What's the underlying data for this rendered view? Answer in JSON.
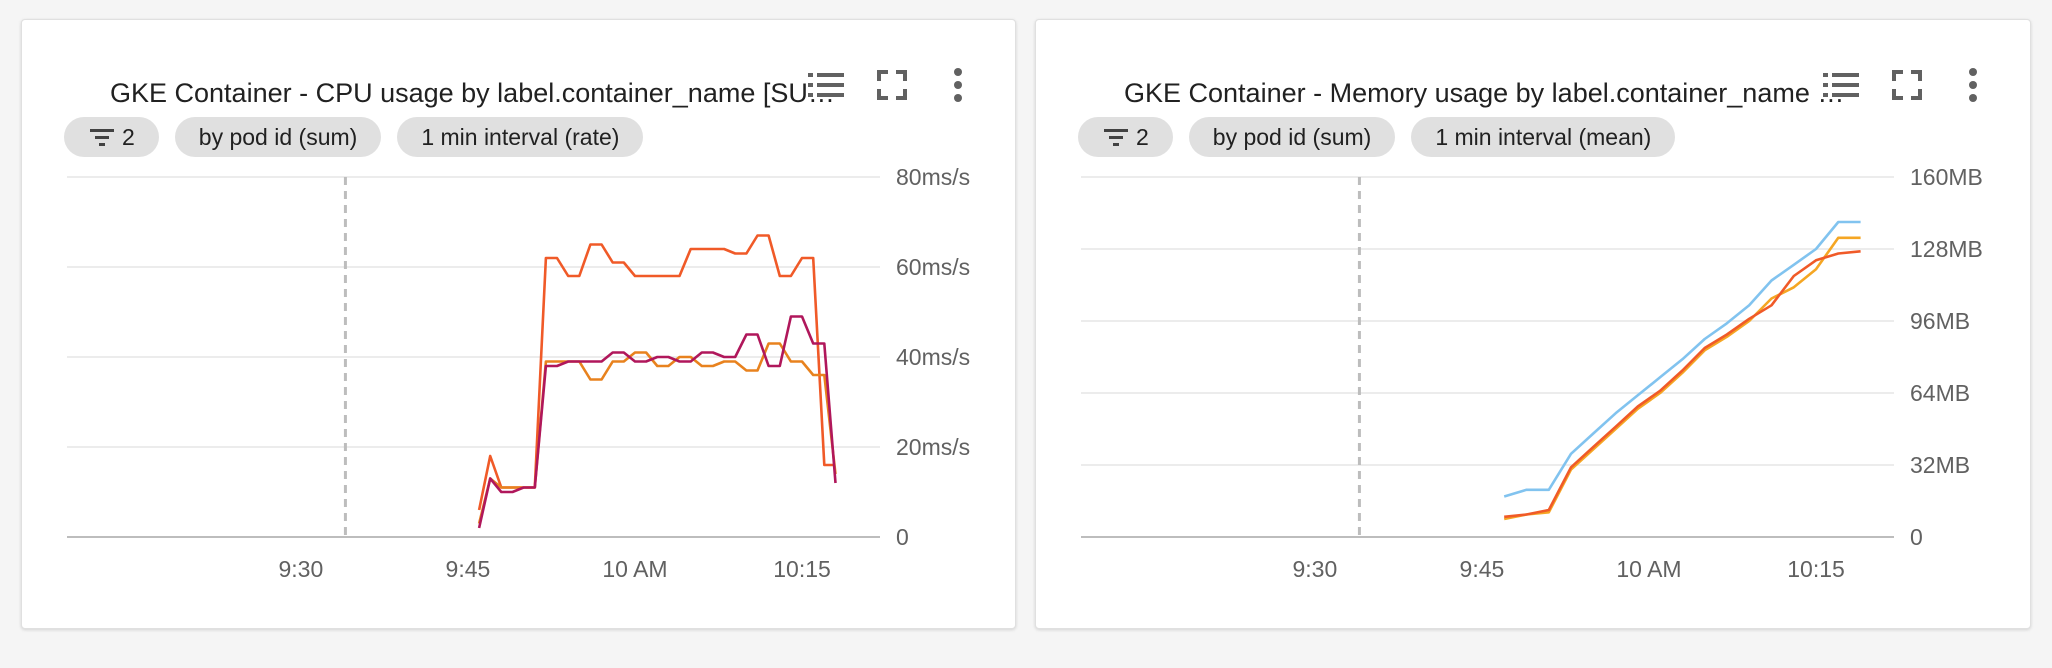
{
  "cards": [
    {
      "title": "GKE Container - CPU usage by label.container_name [SU…",
      "chips": {
        "filter_count": "2",
        "group_by": "by pod id (sum)",
        "interval": "1 min interval (rate)"
      },
      "icons": [
        "legend-list-icon",
        "fullscreen-icon",
        "more-vert-icon"
      ]
    },
    {
      "title": "GKE Container - Memory usage by label.container_name …",
      "chips": {
        "filter_count": "2",
        "group_by": "by pod id (sum)",
        "interval": "1 min interval (mean)"
      },
      "icons": [
        "legend-list-icon",
        "fullscreen-icon",
        "more-vert-icon"
      ]
    }
  ],
  "chart_data": [
    {
      "type": "line",
      "x_unit": "minutes after 9:00",
      "xlim": [
        9,
        82
      ],
      "x_ticks": [
        {
          "value": 30,
          "label": "9:30"
        },
        {
          "value": 45,
          "label": "9:45"
        },
        {
          "value": 60,
          "label": "10 AM"
        },
        {
          "value": 75,
          "label": "10:15"
        }
      ],
      "marker_x": 34,
      "ylim": [
        0,
        80
      ],
      "y_ticks": [
        {
          "value": 0,
          "label": "0"
        },
        {
          "value": 20,
          "label": "20ms/s"
        },
        {
          "value": 40,
          "label": "40ms/s"
        },
        {
          "value": 60,
          "label": "60ms/s"
        },
        {
          "value": 80,
          "label": "80ms/s"
        }
      ],
      "grid": true,
      "series": [
        {
          "color": "#f05a28",
          "x": [
            46,
            47,
            48,
            49,
            50,
            51,
            52,
            53,
            54,
            55,
            56,
            57,
            58,
            59,
            60,
            61,
            62,
            63,
            64,
            65,
            66,
            67,
            68,
            69,
            70,
            71,
            72,
            73,
            74,
            75,
            76,
            77,
            78
          ],
          "y": [
            6,
            18,
            11,
            11,
            11,
            11,
            62,
            62,
            58,
            58,
            65,
            65,
            61,
            61,
            58,
            58,
            58,
            58,
            58,
            64,
            64,
            64,
            64,
            63,
            63,
            67,
            67,
            58,
            58,
            62,
            62,
            16,
            16
          ]
        },
        {
          "color": "#e8821e",
          "x": [
            46,
            47,
            48,
            49,
            50,
            51,
            52,
            53,
            54,
            55,
            56,
            57,
            58,
            59,
            60,
            61,
            62,
            63,
            64,
            65,
            66,
            67,
            68,
            69,
            70,
            71,
            72,
            73,
            74,
            75,
            76,
            77,
            78
          ],
          "y": [
            3,
            13,
            11,
            11,
            11,
            11,
            39,
            39,
            39,
            39,
            35,
            35,
            39,
            39,
            41,
            41,
            38,
            38,
            40,
            40,
            38,
            38,
            39,
            39,
            37,
            37,
            43,
            43,
            39,
            39,
            36,
            36,
            14
          ]
        },
        {
          "color": "#b0175b",
          "x": [
            46,
            47,
            48,
            49,
            50,
            51,
            52,
            53,
            54,
            55,
            56,
            57,
            58,
            59,
            60,
            61,
            62,
            63,
            64,
            65,
            66,
            67,
            68,
            69,
            70,
            71,
            72,
            73,
            74,
            75,
            76,
            77,
            78
          ],
          "y": [
            2,
            13,
            10,
            10,
            11,
            11,
            38,
            38,
            39,
            39,
            39,
            39,
            41,
            41,
            39,
            39,
            40,
            40,
            39,
            39,
            41,
            41,
            40,
            40,
            45,
            45,
            38,
            38,
            49,
            49,
            43,
            43,
            12
          ]
        }
      ]
    },
    {
      "type": "line",
      "x_unit": "minutes after 9:00",
      "xlim": [
        9,
        82
      ],
      "x_ticks": [
        {
          "value": 30,
          "label": "9:30"
        },
        {
          "value": 45,
          "label": "9:45"
        },
        {
          "value": 60,
          "label": "10 AM"
        },
        {
          "value": 75,
          "label": "10:15"
        }
      ],
      "marker_x": 34,
      "ylim": [
        0,
        160
      ],
      "y_ticks": [
        {
          "value": 0,
          "label": "0"
        },
        {
          "value": 32,
          "label": "32MB"
        },
        {
          "value": 64,
          "label": "64MB"
        },
        {
          "value": 96,
          "label": "96MB"
        },
        {
          "value": 128,
          "label": "128MB"
        },
        {
          "value": 160,
          "label": "160MB"
        }
      ],
      "grid": true,
      "series": [
        {
          "color": "#81c3ef",
          "x": [
            47,
            49,
            51,
            53,
            55,
            57,
            59,
            61,
            63,
            65,
            67,
            69,
            71,
            73,
            75,
            77,
            79
          ],
          "y": [
            18,
            21,
            21,
            37,
            46,
            55,
            63,
            71,
            79,
            88,
            95,
            103,
            114,
            121,
            128,
            140,
            140
          ]
        },
        {
          "color": "#f5a623",
          "x": [
            47,
            49,
            51,
            53,
            55,
            57,
            59,
            61,
            63,
            65,
            67,
            69,
            71,
            73,
            75,
            77,
            79
          ],
          "y": [
            8,
            10,
            11,
            30,
            39,
            48,
            57,
            64,
            73,
            83,
            89,
            96,
            106,
            111,
            119,
            133,
            133
          ]
        },
        {
          "color": "#f05a28",
          "x": [
            47,
            49,
            51,
            53,
            55,
            57,
            59,
            61,
            63,
            65,
            67,
            69,
            71,
            73,
            75,
            77,
            79
          ],
          "y": [
            9,
            10,
            12,
            31,
            40,
            49,
            58,
            65,
            74,
            84,
            90,
            97,
            103,
            116,
            123,
            126,
            127
          ]
        }
      ]
    }
  ]
}
